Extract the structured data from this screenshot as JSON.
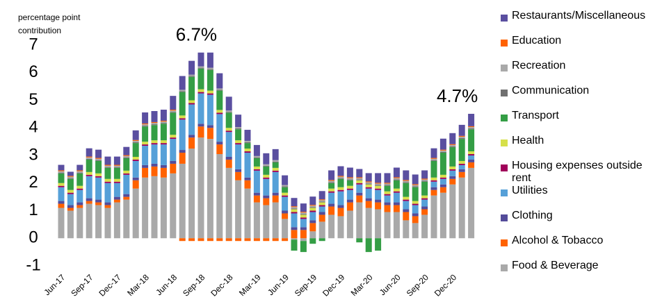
{
  "chart_data": {
    "type": "stacked_bar",
    "ylabel": "percentage point contribution",
    "annotations": [
      {
        "text": "6.7%",
        "index": 16
      },
      {
        "text": "4.7%",
        "index": 44
      }
    ],
    "categories": [
      "Jun-17",
      null,
      null,
      "Sep-17",
      null,
      null,
      "Dec-17",
      null,
      null,
      "Mar-18",
      null,
      null,
      "Jun-18",
      null,
      null,
      "Sep-18",
      null,
      null,
      "Dec-18",
      null,
      null,
      "Mar-19",
      null,
      null,
      "Jun-19",
      null,
      null,
      "Sep-19",
      null,
      null,
      "Dec-19",
      null,
      null,
      "Mar-20",
      null,
      null,
      "Jun-20",
      null,
      null,
      "Sep-20",
      null,
      null,
      "Dec-20",
      null,
      null
    ],
    "ylim": [
      -1,
      7
    ],
    "yticks": [
      -1,
      0,
      1,
      2,
      3,
      4,
      5,
      6,
      7
    ],
    "grid": false,
    "legend": "right",
    "series": [
      {
        "name": "Food & Beverage",
        "color": "#a9a9a9",
        "values": [
          1.1,
          1.0,
          1.1,
          1.25,
          1.2,
          1.1,
          1.3,
          1.4,
          1.8,
          2.2,
          2.25,
          2.2,
          2.35,
          2.7,
          3.25,
          3.65,
          3.6,
          3.05,
          2.55,
          2.1,
          1.8,
          1.3,
          1.2,
          1.3,
          0.7,
          -0.05,
          -0.1,
          0.25,
          0.6,
          0.85,
          0.8,
          1.0,
          1.3,
          1.1,
          1.05,
          0.95,
          0.95,
          0.65,
          0.55,
          0.85,
          1.55,
          1.65,
          1.95,
          2.2,
          2.55
        ]
      },
      {
        "name": "Alcohol & Tobacco",
        "color": "#ff6200",
        "values": [
          0.15,
          0.1,
          0.1,
          0.1,
          0.1,
          0.1,
          0.1,
          0.1,
          0.3,
          0.35,
          0.35,
          0.35,
          0.35,
          0.4,
          0.4,
          0.4,
          0.4,
          0.35,
          0.3,
          0.3,
          0.3,
          0.25,
          0.25,
          0.25,
          0.2,
          0.3,
          0.3,
          0.3,
          0.25,
          0.3,
          0.3,
          0.3,
          0.25,
          0.25,
          0.25,
          0.25,
          0.25,
          0.3,
          0.25,
          0.2,
          0.2,
          0.2,
          0.2,
          0.2,
          0.2
        ]
      },
      {
        "name": "Clothing",
        "color": "#544c9a",
        "values": [
          0.1,
          0.1,
          0.1,
          0.1,
          0.1,
          0.1,
          0.1,
          0.1,
          0.1,
          0.1,
          0.1,
          0.1,
          0.1,
          0.1,
          0.1,
          0.1,
          0.1,
          0.1,
          0.1,
          0.1,
          0.1,
          0.1,
          0.1,
          0.1,
          0.1,
          0.1,
          0.1,
          0.1,
          0.1,
          0.1,
          0.1,
          0.1,
          0.1,
          0.1,
          0.1,
          0.1,
          0.1,
          0.1,
          0.1,
          0.1,
          0.1,
          0.1,
          0.1,
          0.1,
          0.1
        ]
      },
      {
        "name": "Utilities",
        "color": "#56a0d8",
        "values": [
          0.5,
          0.4,
          0.45,
          0.8,
          0.8,
          0.7,
          0.5,
          0.7,
          0.6,
          0.7,
          0.7,
          0.75,
          0.8,
          1.1,
          1.1,
          1.1,
          1.1,
          1.0,
          0.9,
          0.9,
          0.9,
          0.8,
          0.6,
          0.75,
          0.5,
          0.5,
          0.3,
          0.3,
          0.2,
          0.4,
          0.5,
          0.35,
          0.3,
          0.35,
          0.35,
          0.25,
          0.35,
          0.3,
          0.3,
          0.25,
          0.2,
          0.2,
          0.2,
          0.15,
          0.15
        ]
      },
      {
        "name": "Housing expenses outside rent",
        "color": "#a0005a",
        "values": [
          0.05,
          0.05,
          0.05,
          0.05,
          0.05,
          0.05,
          0.05,
          0.05,
          0.05,
          0.05,
          0.05,
          0.05,
          0.05,
          0.05,
          0.05,
          0.05,
          0.05,
          0.05,
          0.05,
          0.05,
          0.05,
          0.05,
          0.05,
          0.05,
          0.05,
          0.05,
          0.05,
          0.05,
          0.05,
          0.05,
          0.05,
          0.05,
          0.05,
          0.05,
          0.05,
          0.05,
          0.05,
          0.05,
          0.05,
          0.05,
          0.05,
          0.05,
          0.05,
          0.05,
          0.05
        ]
      },
      {
        "name": "Health",
        "color": "#d6e04a",
        "values": [
          0.1,
          0.1,
          0.1,
          0.1,
          0.1,
          0.1,
          0.1,
          0.1,
          0.1,
          0.1,
          0.1,
          0.1,
          0.1,
          0.1,
          0.1,
          0.1,
          0.1,
          0.1,
          0.1,
          0.1,
          0.1,
          0.1,
          0.1,
          0.1,
          0.1,
          0.1,
          0.1,
          0.1,
          0.1,
          0.1,
          0.1,
          0.1,
          0.1,
          0.1,
          0.1,
          0.1,
          0.1,
          0.1,
          0.1,
          0.1,
          0.1,
          0.1,
          0.1,
          0.1,
          0.1
        ]
      },
      {
        "name": "Transport",
        "color": "#349e45",
        "values": [
          0.35,
          0.4,
          0.45,
          0.45,
          0.45,
          0.4,
          0.4,
          0.45,
          0.5,
          0.55,
          0.55,
          0.6,
          0.8,
          0.85,
          0.85,
          0.75,
          0.75,
          0.7,
          0.55,
          0.4,
          0.2,
          0.3,
          0.3,
          0.2,
          0.2,
          -0.4,
          -0.4,
          -0.2,
          -0.1,
          0.2,
          0.3,
          0.2,
          -0.15,
          -0.5,
          -0.45,
          0.2,
          0.3,
          0.5,
          0.5,
          0.5,
          0.6,
          0.8,
          0.7,
          0.8,
          0.8
        ]
      },
      {
        "name": "Communication",
        "color": "#707070",
        "values": [
          0.03,
          0.03,
          0.03,
          0.03,
          0.03,
          0.03,
          0.03,
          0.03,
          0.03,
          0.03,
          0.03,
          0.03,
          0.03,
          0.03,
          0.03,
          0.03,
          0.03,
          0.03,
          0.03,
          0.03,
          0.03,
          0.03,
          0.03,
          0.03,
          0.03,
          0.03,
          0.03,
          0.03,
          0.03,
          0.03,
          0.03,
          0.03,
          0.03,
          0.03,
          0.03,
          0.03,
          0.03,
          0.03,
          0.03,
          0.03,
          0.03,
          0.03,
          0.03,
          0.03,
          0.03
        ]
      },
      {
        "name": "Recreation",
        "color": "#a9a9a9",
        "values": [
          0.05,
          0.05,
          0.05,
          0.05,
          0.05,
          0.05,
          0.05,
          0.05,
          0.05,
          0.05,
          0.05,
          0.05,
          0.05,
          0.05,
          0.05,
          0.05,
          0.05,
          0.05,
          0.05,
          0.05,
          0.05,
          0.05,
          0.05,
          0.05,
          0.05,
          0.05,
          0.05,
          0.05,
          0.05,
          0.05,
          0.05,
          0.05,
          0.05,
          0.05,
          0.05,
          0.05,
          0.05,
          0.05,
          0.05,
          0.05,
          0.05,
          0.05,
          0.05,
          0.05,
          0.05
        ]
      },
      {
        "name": "Education",
        "color": "#ff6200",
        "values": [
          0.03,
          0.03,
          0.03,
          0.03,
          0.03,
          0.03,
          0.03,
          0.03,
          0.03,
          0.03,
          0.03,
          0.03,
          0.03,
          -0.1,
          -0.1,
          -0.1,
          -0.1,
          -0.1,
          -0.1,
          -0.1,
          -0.1,
          -0.1,
          -0.1,
          -0.1,
          -0.1,
          0.03,
          0.03,
          0.03,
          0.03,
          0.03,
          0.03,
          0.03,
          0.03,
          0.03,
          0.03,
          0.03,
          0.03,
          0.03,
          0.03,
          0.03,
          0.03,
          0.03,
          0.03,
          0.03,
          0.03
        ]
      },
      {
        "name": "Restaurants/Miscellaneous",
        "color": "#5a4fa0",
        "values": [
          0.2,
          0.15,
          0.2,
          0.3,
          0.3,
          0.3,
          0.3,
          0.3,
          0.35,
          0.4,
          0.4,
          0.4,
          0.5,
          0.5,
          0.5,
          0.5,
          0.55,
          0.55,
          0.5,
          0.45,
          0.4,
          0.4,
          0.4,
          0.4,
          0.35,
          0.3,
          0.3,
          0.3,
          0.3,
          0.35,
          0.35,
          0.35,
          0.3,
          0.3,
          0.35,
          0.35,
          0.35,
          0.35,
          0.35,
          0.3,
          0.35,
          0.4,
          0.4,
          0.4,
          0.45
        ]
      }
    ]
  }
}
